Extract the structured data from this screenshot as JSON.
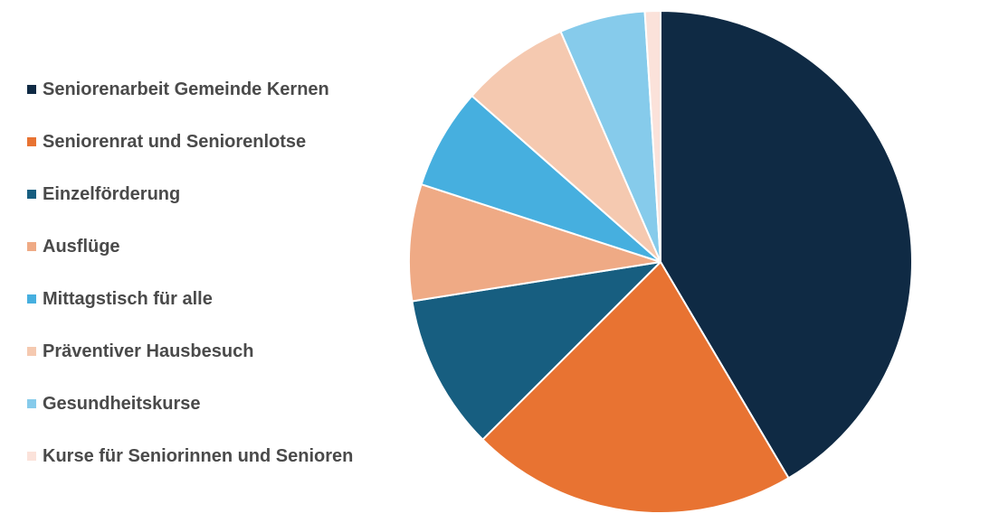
{
  "chart_data": {
    "type": "pie",
    "title": "",
    "legend_position": "left",
    "start_angle_deg": 0,
    "direction": "clockwise",
    "slices": [
      {
        "label": "Seniorenarbeit Gemeinde Kernen",
        "value": 41.5,
        "color": "#0f2a44"
      },
      {
        "label": "Seniorenrat und Seniorenlotse",
        "value": 21.0,
        "color": "#e87332"
      },
      {
        "label": "Einzelförderung",
        "value": 10.0,
        "color": "#175e80"
      },
      {
        "label": "Ausflüge",
        "value": 7.5,
        "color": "#efaa85"
      },
      {
        "label": "Mittagstisch für alle",
        "value": 6.5,
        "color": "#46afdf"
      },
      {
        "label": "Präventiver Hausbesuch",
        "value": 7.0,
        "color": "#f5c9b0"
      },
      {
        "label": "Gesundheitskurse",
        "value": 5.5,
        "color": "#86cbeb"
      },
      {
        "label": "Kurse für Seniorinnen und Senioren",
        "value": 1.0,
        "color": "#fbe2da"
      }
    ]
  }
}
